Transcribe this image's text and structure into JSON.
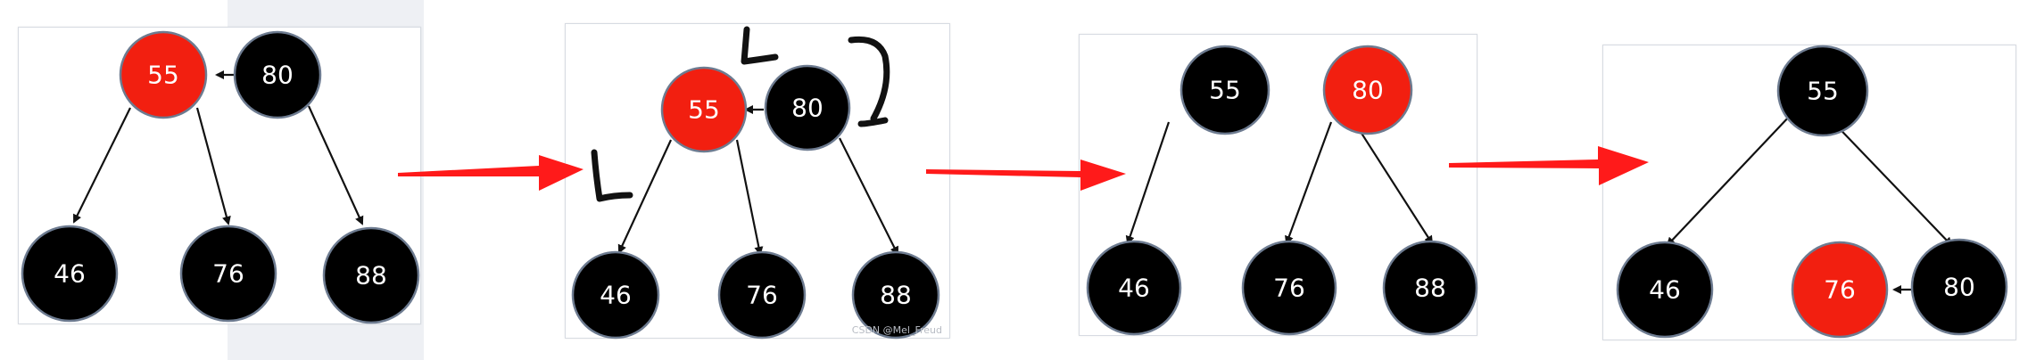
{
  "colors": {
    "red": "#f21f10",
    "black": "#000000",
    "arrow": "#ff1a1a"
  },
  "panels": [
    {
      "nodes": {
        "n55": "55",
        "n80": "80",
        "n46": "46",
        "n76": "76",
        "n88": "88"
      }
    },
    {
      "nodes": {
        "n55": "55",
        "n80": "80",
        "n46": "46",
        "n76": "76",
        "n88": "88"
      },
      "watermark": "CSDN @Mel_Freud"
    },
    {
      "nodes": {
        "n55": "55",
        "n80": "80",
        "n46": "46",
        "n76": "76",
        "n88": "88"
      }
    },
    {
      "nodes": {
        "n55": "55",
        "n46": "46",
        "n76": "76",
        "n80": "80"
      }
    }
  ]
}
